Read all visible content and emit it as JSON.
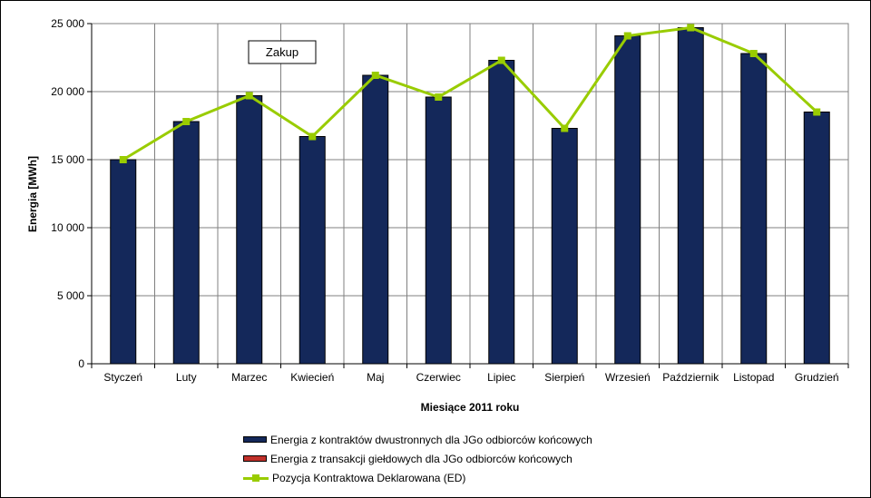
{
  "chart_data": {
    "type": "bar",
    "title": "",
    "annotation": "Zakup",
    "xlabel": "Miesiące 2011  roku",
    "ylabel": "Energia  [MWh]",
    "ylim": [
      0,
      25000
    ],
    "yticks": [
      0,
      5000,
      10000,
      15000,
      20000,
      25000
    ],
    "ytick_labels": [
      "0",
      "5 000",
      "10 000",
      "15 000",
      "20 000",
      "25 000"
    ],
    "grid": true,
    "legend_position": "bottom",
    "categories": [
      "Styczeń",
      "Luty",
      "Marzec",
      "Kwiecień",
      "Maj",
      "Czerwiec",
      "Lipiec",
      "Sierpień",
      "Wrzesień",
      "Październik",
      "Listopad",
      "Grudzień"
    ],
    "series": [
      {
        "name": "Energia z kontraktów dwustronnych dla JGo odbiorców końcowych",
        "type": "bar",
        "color": "#14285a",
        "values": [
          15000,
          17800,
          19700,
          16700,
          21200,
          19600,
          22300,
          17300,
          24100,
          24700,
          22800,
          18500
        ]
      },
      {
        "name": "Energia z transakcji giełdowych dla JGo odbiorców końcowych",
        "type": "bar",
        "color": "#c0302a",
        "values": [
          0,
          0,
          0,
          0,
          0,
          0,
          0,
          0,
          0,
          0,
          0,
          0
        ]
      },
      {
        "name": "Pozycja Kontraktowa Deklarowana (ED)",
        "type": "line",
        "color": "#99cc00",
        "values": [
          15000,
          17800,
          19700,
          16700,
          21200,
          19600,
          22300,
          17300,
          24100,
          24700,
          22800,
          18500
        ]
      }
    ]
  }
}
